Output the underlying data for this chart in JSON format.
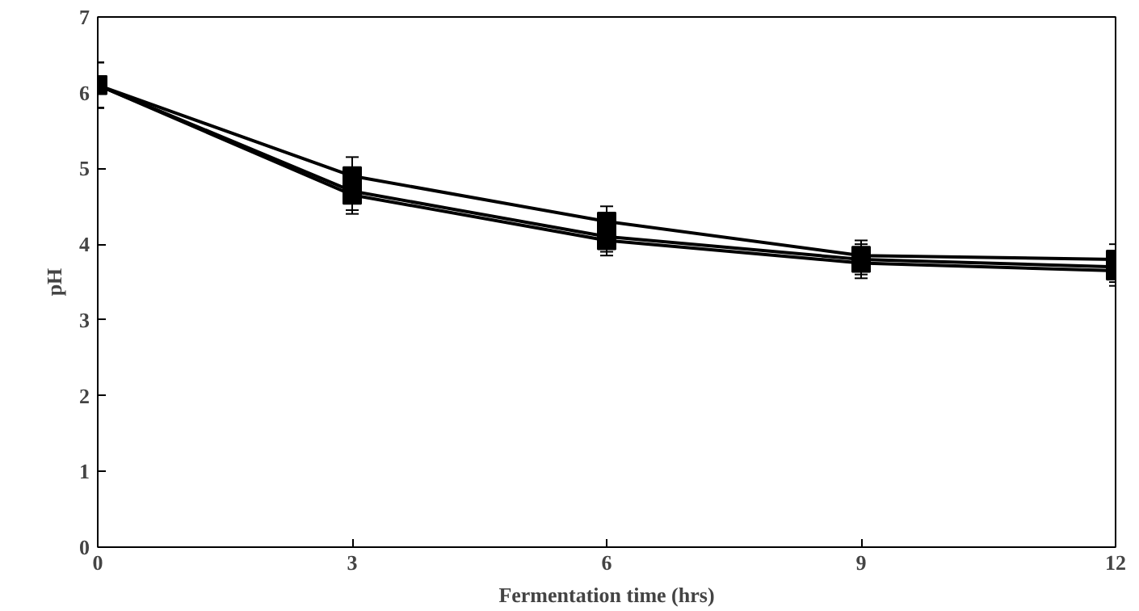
{
  "chart_data": {
    "type": "line",
    "xlabel": "Fermentation time (hrs)",
    "ylabel": "pH",
    "x": [
      0,
      3,
      6,
      9,
      12
    ],
    "xlim": [
      0,
      12
    ],
    "xticks": [
      0,
      3,
      6,
      9,
      12
    ],
    "ylim": [
      0,
      7
    ],
    "yticks": [
      0,
      1,
      2,
      3,
      4,
      5,
      6,
      7
    ],
    "grid": false,
    "marker": "square",
    "series": [
      {
        "color": "#000000",
        "values": [
          6.1,
          4.9,
          4.3,
          3.85,
          3.8
        ],
        "errors": [
          0.3,
          0.25,
          0.2,
          0.2,
          0.2
        ]
      },
      {
        "color": "#000000",
        "values": [
          6.1,
          4.7,
          4.1,
          3.8,
          3.7
        ],
        "errors": [
          0.3,
          0.25,
          0.2,
          0.2,
          0.2
        ]
      },
      {
        "color": "#000000",
        "values": [
          6.1,
          4.65,
          4.05,
          3.75,
          3.65
        ],
        "errors": [
          0.3,
          0.25,
          0.2,
          0.2,
          0.2
        ]
      }
    ]
  }
}
